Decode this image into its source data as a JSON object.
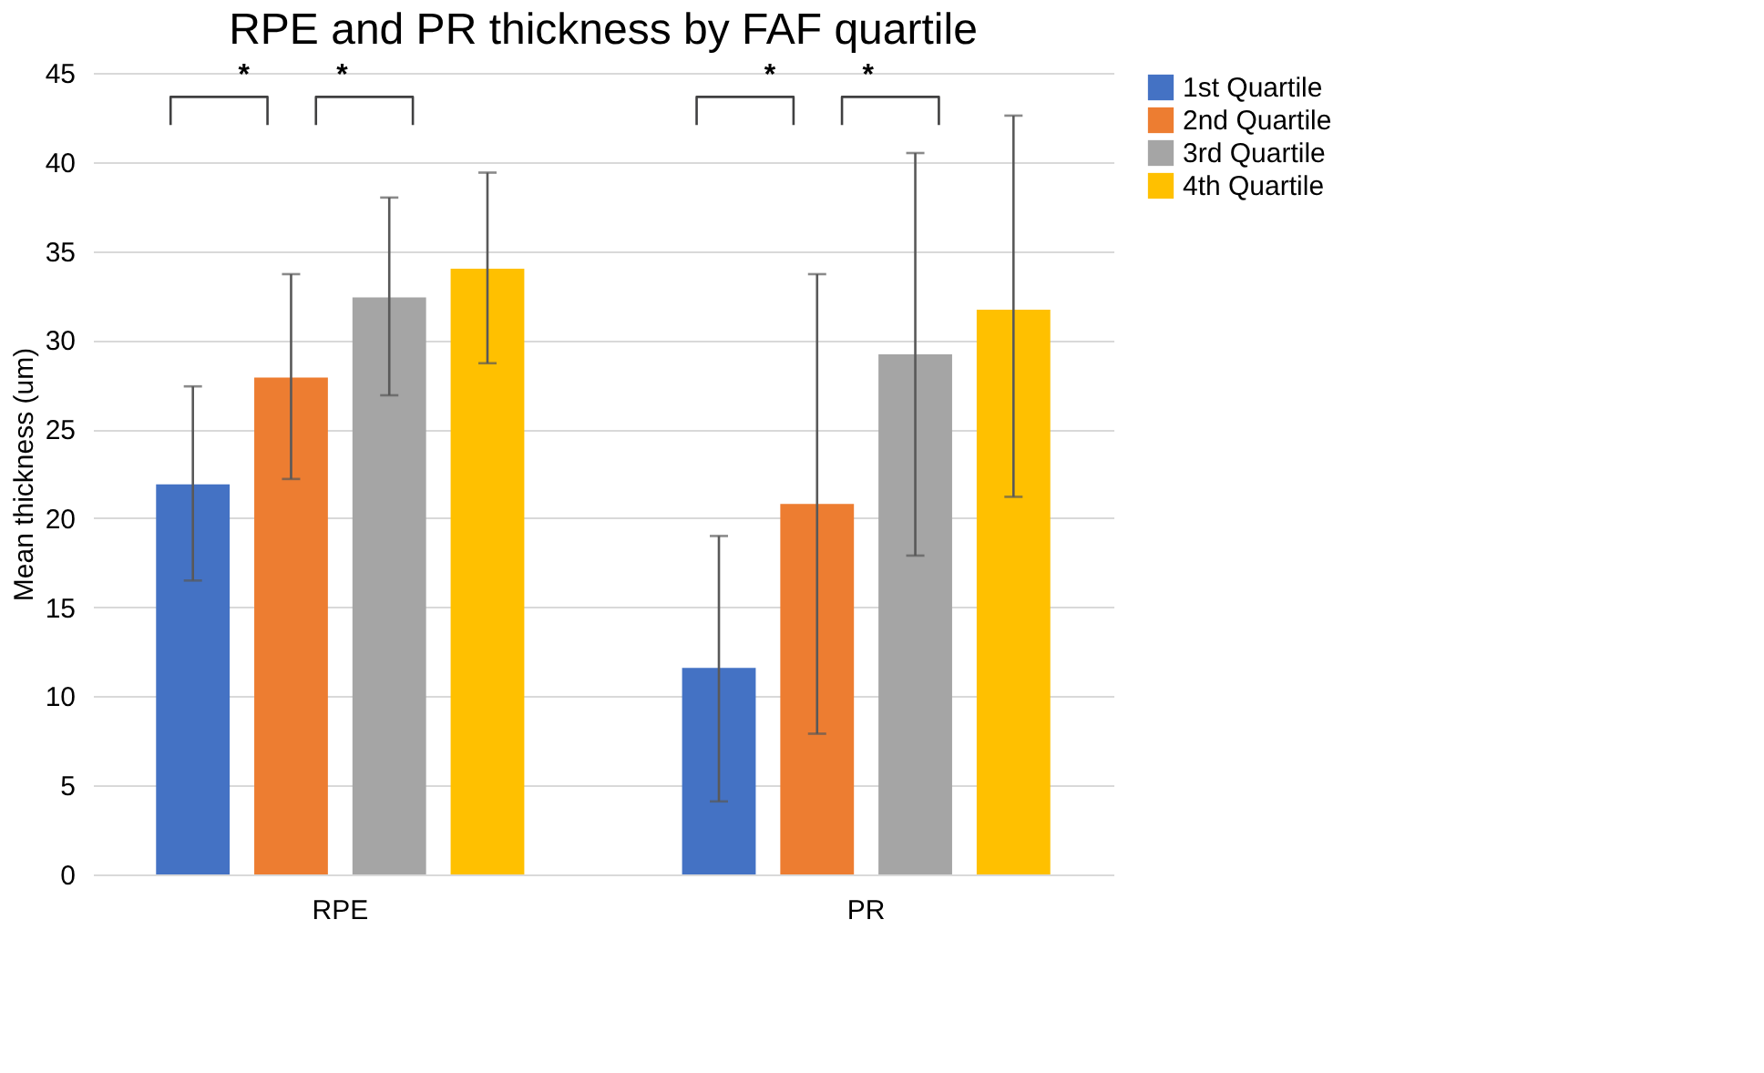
{
  "chart_data": {
    "type": "bar",
    "title": "RPE and PR thickness by FAF quartile",
    "ylabel": "Mean thickness (um)",
    "categories": [
      "RPE",
      "PR"
    ],
    "series": [
      {
        "name": "1st Quartile",
        "color": "#4472c4",
        "values": [
          21.9,
          11.6
        ],
        "errors": [
          [
            16.5,
            27.4
          ],
          [
            4.1,
            19.0
          ]
        ]
      },
      {
        "name": "2nd Quartile",
        "color": "#ed7d31",
        "values": [
          27.9,
          20.8
        ],
        "errors": [
          [
            22.2,
            33.7
          ],
          [
            7.9,
            33.7
          ]
        ]
      },
      {
        "name": "3rd Quartile",
        "color": "#a5a5a5",
        "values": [
          32.4,
          29.2
        ],
        "errors": [
          [
            26.9,
            38.0
          ],
          [
            17.9,
            40.5
          ]
        ]
      },
      {
        "name": "4th Quartile",
        "color": "#ffc000",
        "values": [
          34.0,
          31.7
        ],
        "errors": [
          [
            28.7,
            39.4
          ],
          [
            21.2,
            42.6
          ]
        ]
      }
    ],
    "ylim": [
      0,
      45
    ],
    "yticks": [
      0,
      5,
      10,
      15,
      20,
      25,
      30,
      35,
      40,
      45
    ],
    "grid": "y",
    "legend": "right",
    "annotations": [
      "*",
      "*",
      "*",
      "*"
    ]
  }
}
